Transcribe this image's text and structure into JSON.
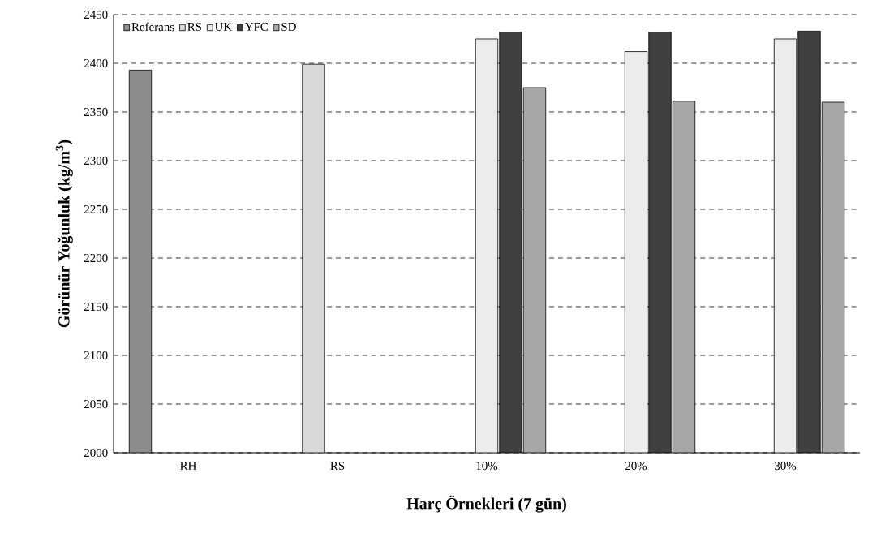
{
  "chart_data": {
    "type": "bar",
    "xlabel": "Harç Örnekleri (7 gün)",
    "ylabel": "Görünür Yoğunluk  (kg/m$^{3}$)",
    "categories": [
      "RH",
      "RS",
      "10%",
      "20%",
      "30%"
    ],
    "series": [
      {
        "name": "Referans",
        "color": "#8c8c8c",
        "values": [
          2393,
          null,
          null,
          null,
          null
        ]
      },
      {
        "name": "RS",
        "color": "#d9d9d9",
        "values": [
          null,
          2399,
          null,
          null,
          null
        ]
      },
      {
        "name": "UK",
        "color": "#ececec",
        "values": [
          null,
          null,
          2425,
          2412,
          2425
        ]
      },
      {
        "name": "YFC",
        "color": "#404040",
        "values": [
          null,
          null,
          2432,
          2432,
          2433
        ]
      },
      {
        "name": "SD",
        "color": "#a6a6a6",
        "values": [
          null,
          null,
          2375,
          2361,
          2360
        ]
      }
    ],
    "ylim": [
      2000,
      2450
    ],
    "yticks": [
      2000,
      2050,
      2100,
      2150,
      2200,
      2250,
      2300,
      2350,
      2400,
      2450
    ],
    "grid": "y",
    "legend": "top left"
  }
}
